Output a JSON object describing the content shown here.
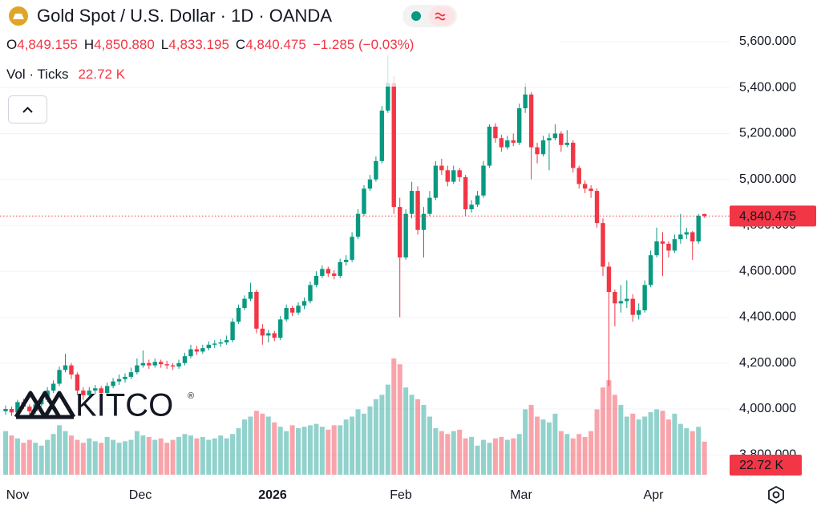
{
  "header": {
    "title": "Gold Spot / U.S. Dollar · 1D · OANDA",
    "open_key": "O",
    "open": {
      "value": 4849.155,
      "label": "4,849.155"
    },
    "high_key": "H",
    "high": {
      "value": 4850.88,
      "label": "4,850.880"
    },
    "low_key": "L",
    "low": {
      "value": 4833.195,
      "label": "4,833.195"
    },
    "close_key": "C",
    "close": {
      "value": 4840.475,
      "label": "4,840.475"
    },
    "change": "−1.285 (−0.03%)",
    "volume_key": "Vol · Ticks"
  },
  "logo": {
    "text": "KITCO",
    "mark": "®"
  },
  "chart_data": {
    "type": "candlestick",
    "up_color": "#089981",
    "down_color": "#f23645",
    "volume_up_color": "rgba(38,166,154,0.5)",
    "volume_down_color": "rgba(242,54,69,0.45)",
    "ylim": [
      3685.6,
      5781.7
    ],
    "yticks": [
      {
        "value": 3800,
        "label": "3,800.000"
      },
      {
        "value": 4000,
        "label": "4,000.000"
      },
      {
        "value": 4200,
        "label": "4,200.000"
      },
      {
        "value": 4400,
        "label": "4,400.000"
      },
      {
        "value": 4600,
        "label": "4,600.000"
      },
      {
        "value": 4800,
        "label": "4,800.000"
      },
      {
        "value": 5000,
        "label": "5,000.000"
      },
      {
        "value": 5200,
        "label": "5,200.000"
      },
      {
        "value": 5400,
        "label": "5,400.000"
      },
      {
        "value": 5600,
        "label": "5,600.000"
      }
    ],
    "grid": true,
    "x_tick_labels": [
      "Nov",
      "Dec",
      "2026",
      "Feb",
      "Mar",
      "Apr"
    ],
    "last_price": {
      "value": 4840.475,
      "label": "4,840.475"
    },
    "last_volume": {
      "value": 22.72,
      "label": "22.72 K"
    },
    "ohlc": [
      [
        3990,
        4015,
        3975,
        4000
      ],
      [
        4000,
        4010,
        3970,
        3985
      ],
      [
        3985,
        4040,
        3975,
        4030
      ],
      [
        4030,
        4045,
        4000,
        4010
      ],
      [
        4010,
        4020,
        3975,
        3990
      ],
      [
        3990,
        4030,
        3980,
        4020
      ],
      [
        4020,
        4055,
        4010,
        4040
      ],
      [
        4040,
        4095,
        4030,
        4080
      ],
      [
        4080,
        4125,
        4070,
        4110
      ],
      [
        4110,
        4185,
        4100,
        4170
      ],
      [
        4170,
        4240,
        4160,
        4190
      ],
      [
        4190,
        4200,
        4130,
        4150
      ],
      [
        4150,
        4160,
        4060,
        4080
      ],
      [
        4080,
        4095,
        4040,
        4060
      ],
      [
        4060,
        4095,
        4050,
        4080
      ],
      [
        4080,
        4105,
        4065,
        4090
      ],
      [
        4090,
        4100,
        4055,
        4070
      ],
      [
        4070,
        4115,
        4060,
        4100
      ],
      [
        4100,
        4135,
        4090,
        4120
      ],
      [
        4120,
        4150,
        4105,
        4130
      ],
      [
        4130,
        4155,
        4115,
        4140
      ],
      [
        4140,
        4180,
        4130,
        4160
      ],
      [
        4160,
        4220,
        4150,
        4190
      ],
      [
        4190,
        4255,
        4180,
        4200
      ],
      [
        4200,
        4215,
        4175,
        4190
      ],
      [
        4190,
        4220,
        4180,
        4205
      ],
      [
        4205,
        4215,
        4180,
        4195
      ],
      [
        4195,
        4210,
        4175,
        4190
      ],
      [
        4190,
        4200,
        4170,
        4185
      ],
      [
        4185,
        4215,
        4175,
        4200
      ],
      [
        4200,
        4245,
        4190,
        4230
      ],
      [
        4230,
        4280,
        4220,
        4260
      ],
      [
        4260,
        4275,
        4235,
        4250
      ],
      [
        4250,
        4280,
        4240,
        4265
      ],
      [
        4265,
        4295,
        4255,
        4280
      ],
      [
        4280,
        4300,
        4265,
        4285
      ],
      [
        4285,
        4305,
        4270,
        4290
      ],
      [
        4290,
        4320,
        4280,
        4300
      ],
      [
        4300,
        4395,
        4290,
        4380
      ],
      [
        4380,
        4455,
        4370,
        4440
      ],
      [
        4440,
        4495,
        4430,
        4480
      ],
      [
        4480,
        4550,
        4470,
        4510
      ],
      [
        4510,
        4520,
        4330,
        4350
      ],
      [
        4350,
        4370,
        4280,
        4320
      ],
      [
        4320,
        4345,
        4290,
        4330
      ],
      [
        4330,
        4340,
        4295,
        4310
      ],
      [
        4310,
        4405,
        4300,
        4390
      ],
      [
        4390,
        4455,
        4380,
        4440
      ],
      [
        4440,
        4450,
        4405,
        4420
      ],
      [
        4420,
        4465,
        4410,
        4450
      ],
      [
        4450,
        4485,
        4435,
        4470
      ],
      [
        4470,
        4555,
        4460,
        4540
      ],
      [
        4540,
        4600,
        4530,
        4580
      ],
      [
        4580,
        4625,
        4570,
        4610
      ],
      [
        4610,
        4620,
        4575,
        4590
      ],
      [
        4590,
        4605,
        4565,
        4580
      ],
      [
        4580,
        4655,
        4570,
        4640
      ],
      [
        4640,
        4670,
        4625,
        4650
      ],
      [
        4650,
        4770,
        4640,
        4750
      ],
      [
        4750,
        4870,
        4740,
        4850
      ],
      [
        4850,
        4975,
        4840,
        4960
      ],
      [
        4960,
        5020,
        4950,
        5000
      ],
      [
        5000,
        5100,
        4990,
        5080
      ],
      [
        5080,
        5320,
        5070,
        5300
      ],
      [
        5300,
        5540,
        5290,
        5420
      ],
      [
        5420,
        5450,
        4850,
        4880
      ],
      [
        4880,
        4920,
        4400,
        4660
      ],
      [
        4660,
        4870,
        4650,
        4850
      ],
      [
        4850,
        4990,
        4830,
        4950
      ],
      [
        4950,
        4970,
        4760,
        4780
      ],
      [
        4780,
        4880,
        4660,
        4850
      ],
      [
        4850,
        4950,
        4840,
        4920
      ],
      [
        4920,
        5080,
        4910,
        5060
      ],
      [
        5060,
        5090,
        5020,
        5040
      ],
      [
        5040,
        5060,
        4970,
        4990
      ],
      [
        4990,
        5060,
        4980,
        5040
      ],
      [
        5040,
        5050,
        4990,
        5010
      ],
      [
        5010,
        5020,
        4840,
        4870
      ],
      [
        4870,
        4910,
        4855,
        4890
      ],
      [
        4890,
        4950,
        4880,
        4930
      ],
      [
        4930,
        5080,
        4920,
        5060
      ],
      [
        5060,
        5240,
        5050,
        5230
      ],
      [
        5230,
        5245,
        5160,
        5180
      ],
      [
        5180,
        5195,
        5120,
        5140
      ],
      [
        5140,
        5190,
        5130,
        5170
      ],
      [
        5170,
        5200,
        5145,
        5160
      ],
      [
        5160,
        5330,
        5150,
        5310
      ],
      [
        5310,
        5420,
        5290,
        5370
      ],
      [
        5370,
        5380,
        5000,
        5140
      ],
      [
        5140,
        5160,
        5070,
        5110
      ],
      [
        5110,
        5190,
        5100,
        5170
      ],
      [
        5170,
        5200,
        5040,
        5180
      ],
      [
        5180,
        5240,
        5170,
        5200
      ],
      [
        5200,
        5210,
        5120,
        5150
      ],
      [
        5150,
        5215,
        5140,
        5160
      ],
      [
        5160,
        5170,
        5030,
        5050
      ],
      [
        5050,
        5060,
        4960,
        4980
      ],
      [
        4980,
        4995,
        4940,
        4960
      ],
      [
        4960,
        4975,
        4920,
        4950
      ],
      [
        4950,
        4960,
        4790,
        4810
      ],
      [
        4810,
        4830,
        4580,
        4620
      ],
      [
        4620,
        4640,
        4100,
        4510
      ],
      [
        4510,
        4520,
        4360,
        4460
      ],
      [
        4460,
        4540,
        4420,
        4470
      ],
      [
        4470,
        4560,
        4440,
        4480
      ],
      [
        4480,
        4500,
        4380,
        4410
      ],
      [
        4410,
        4460,
        4390,
        4430
      ],
      [
        4430,
        4560,
        4420,
        4540
      ],
      [
        4540,
        4690,
        4530,
        4670
      ],
      [
        4670,
        4790,
        4660,
        4730
      ],
      [
        4730,
        4770,
        4580,
        4720
      ],
      [
        4720,
        4730,
        4660,
        4690
      ],
      [
        4690,
        4760,
        4680,
        4740
      ],
      [
        4740,
        4850,
        4720,
        4760
      ],
      [
        4760,
        4790,
        4740,
        4770
      ],
      [
        4770,
        4775,
        4650,
        4730
      ],
      [
        4730,
        4850,
        4720,
        4841.76
      ],
      [
        4849.155,
        4850.88,
        4833.195,
        4840.475
      ]
    ],
    "volume": [
      30,
      27,
      25,
      22,
      24,
      22,
      20,
      24,
      28,
      34,
      30,
      27,
      24,
      22,
      25,
      23,
      22,
      26,
      24,
      22,
      23,
      24,
      30,
      27,
      26,
      24,
      25,
      22,
      24,
      26,
      28,
      27,
      25,
      26,
      24,
      25,
      27,
      25,
      28,
      32,
      38,
      40,
      44,
      42,
      40,
      36,
      33,
      30,
      34,
      32,
      33,
      34,
      35,
      33,
      31,
      34,
      34,
      38,
      40,
      45,
      42,
      47,
      52,
      55,
      62,
      80,
      76,
      60,
      55,
      52,
      48,
      40,
      32,
      30,
      28,
      30,
      31,
      25,
      26,
      20,
      24,
      22,
      25,
      26,
      24,
      25,
      28,
      45,
      48,
      40,
      38,
      36,
      42,
      30,
      28,
      25,
      28,
      26,
      30,
      45,
      60,
      65,
      55,
      48,
      40,
      42,
      38,
      40,
      43,
      45,
      44,
      38,
      42,
      35,
      32,
      30,
      33,
      22.72
    ]
  }
}
